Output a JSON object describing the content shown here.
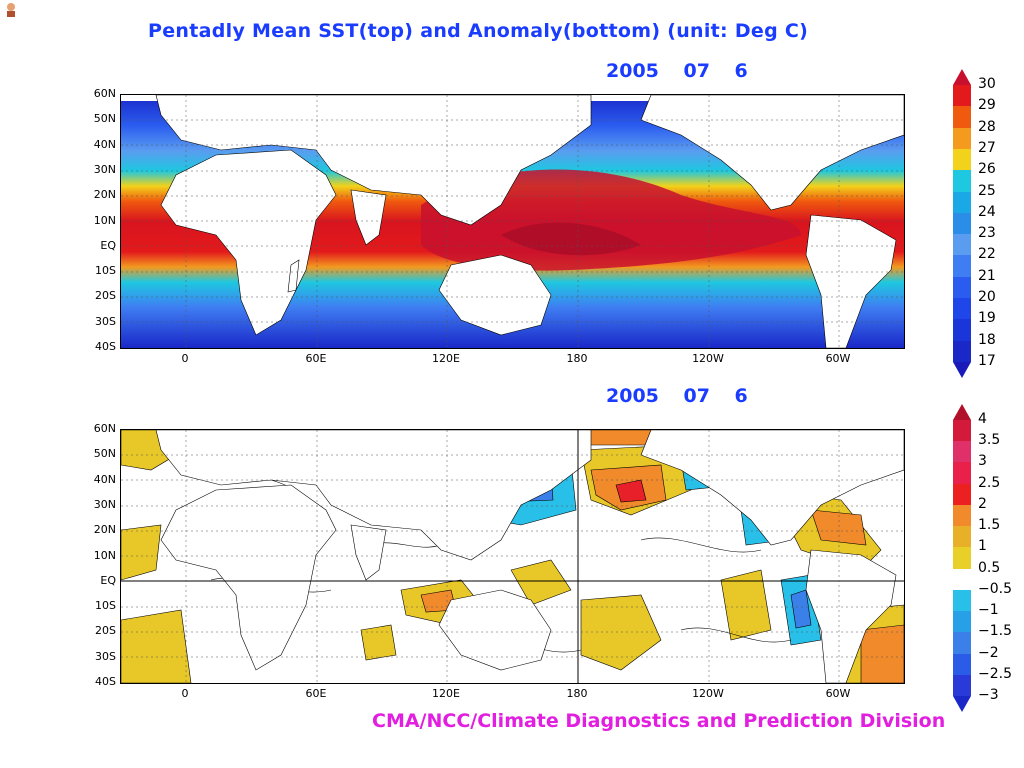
{
  "title": "Pentadly Mean SST(top) and Anomaly(bottom) (unit: Deg C)",
  "credit": "CMA/NCC/Climate Diagnostics and Prediction Division",
  "top_panel": {
    "date": "2005 07 6",
    "y_labels": [
      "60N",
      "50N",
      "40N",
      "30N",
      "20N",
      "10N",
      "EQ",
      "10S",
      "20S",
      "30S",
      "40S"
    ],
    "x_labels": [
      "0",
      "60E",
      "120E",
      "180",
      "120W",
      "60W"
    ],
    "colorbar": {
      "labels": [
        "30",
        "29",
        "28",
        "27",
        "26",
        "25",
        "24",
        "23",
        "22",
        "21",
        "20",
        "19",
        "18",
        "17"
      ],
      "colors": [
        "#c8102e",
        "#e31a1c",
        "#f05a0f",
        "#f39a1f",
        "#f2d21b",
        "#1ec8e0",
        "#1aa8e6",
        "#2a8ee8",
        "#5a9cf0",
        "#3f7df2",
        "#2a5cf0",
        "#1f46e8",
        "#1a36d8",
        "#1a28c8",
        "#1a1ab8"
      ]
    }
  },
  "bottom_panel": {
    "date": "2005 07 6",
    "y_labels": [
      "60N",
      "50N",
      "40N",
      "30N",
      "20N",
      "10N",
      "EQ",
      "10S",
      "20S",
      "30S",
      "40S"
    ],
    "x_labels": [
      "0",
      "60E",
      "120E",
      "180",
      "120W",
      "60W"
    ],
    "colorbar": {
      "labels": [
        "4",
        "3.5",
        "3",
        "2.5",
        "2",
        "1.5",
        "1",
        "0.5",
        "−0.5",
        "−1",
        "−1.5",
        "−2",
        "−2.5",
        "−3"
      ],
      "colors": [
        "#b0102a",
        "#d41a3a",
        "#e0306a",
        "#e8204a",
        "#ec2020",
        "#f08a2a",
        "#e8b028",
        "#e8d028",
        "#ffffff",
        "#28c0e8",
        "#28a0e8",
        "#3a80e8",
        "#2a5ce8",
        "#2a3ad8",
        "#1a28c8"
      ]
    }
  }
}
